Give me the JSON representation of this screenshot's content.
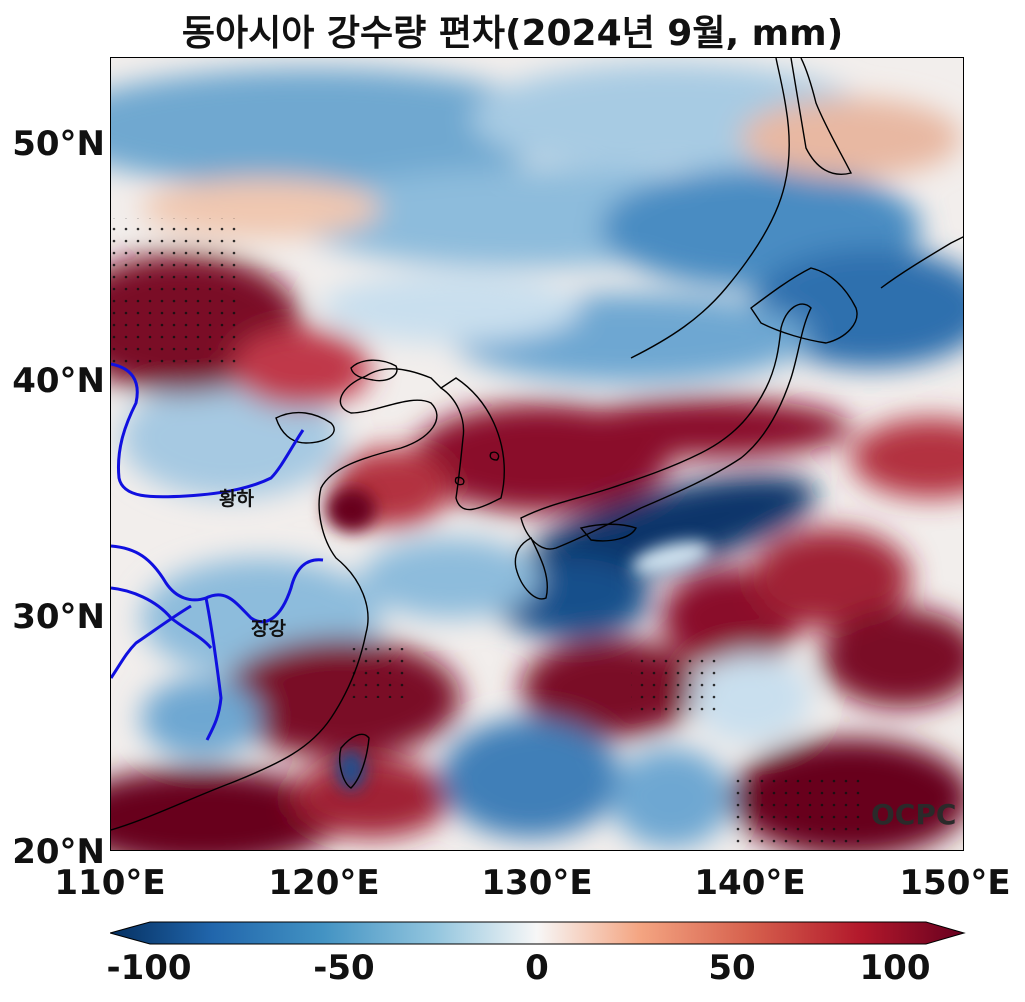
{
  "title": "동아시아 강수량 편차(2024년 9월, mm)",
  "map": {
    "lon_range": [
      110,
      150
    ],
    "lat_range": [
      20,
      53.5
    ],
    "x_ticks": [
      {
        "label": "110°E",
        "lon": 110
      },
      {
        "label": "120°E",
        "lon": 120
      },
      {
        "label": "130°E",
        "lon": 130
      },
      {
        "label": "140°E",
        "lon": 140
      },
      {
        "label": "150°E",
        "lon": 150
      }
    ],
    "y_ticks": [
      {
        "label": "20°N",
        "lat": 20
      },
      {
        "label": "30°N",
        "lat": 30
      },
      {
        "label": "40°N",
        "lat": 40
      },
      {
        "label": "50°N",
        "lat": 50
      }
    ],
    "rivers": [
      {
        "name": "황하",
        "color": "#1010e0"
      },
      {
        "name": "장강",
        "color": "#1010e0"
      }
    ],
    "logo": "OCPC",
    "colors": {
      "dry": "#053061",
      "neutral": "#f7f7f7",
      "wet": "#67001f"
    }
  },
  "colorbar": {
    "ticks": [
      "-100",
      "-50",
      "0",
      "50",
      "100"
    ],
    "range": [
      -100,
      100
    ],
    "colormap": "RdBu_r"
  }
}
